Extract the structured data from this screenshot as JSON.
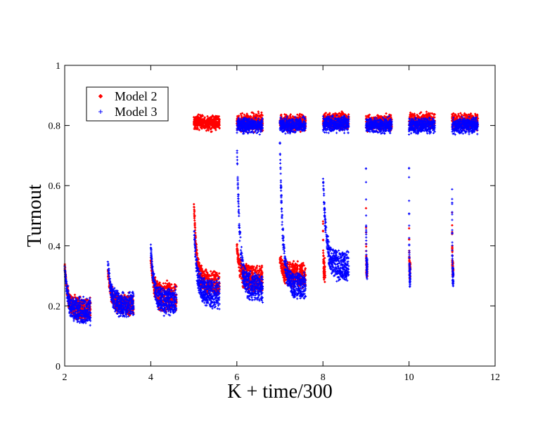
{
  "chart_data": {
    "type": "scatter",
    "title": "",
    "xlabel": "K + time/300",
    "ylabel": "Turnout",
    "xlim": [
      2,
      12
    ],
    "ylim": [
      0,
      1
    ],
    "xticks": [
      2,
      4,
      6,
      8,
      10,
      12
    ],
    "yticks": [
      0,
      0.2,
      0.4,
      0.6,
      0.8,
      1
    ],
    "xtick_labels": [
      "2",
      "4",
      "6",
      "8",
      "10",
      "12"
    ],
    "ytick_labels": [
      "0",
      "0.2",
      "0.4",
      "0.6",
      "0.8",
      "1"
    ],
    "grid": false,
    "legend_position": "top-left",
    "series": [
      {
        "name": "Model 2",
        "marker": "diamond",
        "color": "#ff0000",
        "clusters": [
          {
            "x": [
              2.0,
              2.6
            ],
            "y_start": 0.34,
            "y_low": 0.16,
            "y_high": 0.22,
            "mode": "decay"
          },
          {
            "x": [
              3.0,
              3.6
            ],
            "y_start": 0.33,
            "y_low": 0.18,
            "y_high": 0.23,
            "mode": "decay"
          },
          {
            "x": [
              4.0,
              4.6
            ],
            "y_start": 0.36,
            "y_low": 0.19,
            "y_high": 0.27,
            "mode": "decay"
          },
          {
            "x": [
              5.0,
              5.6
            ],
            "y_mid": 0.81,
            "spread": 0.035,
            "mode": "band"
          },
          {
            "x": [
              5.0,
              5.6
            ],
            "y_start": 0.55,
            "y_low": 0.24,
            "y_high": 0.31,
            "mode": "decay"
          },
          {
            "x": [
              6.0,
              6.6
            ],
            "y_mid": 0.81,
            "spread": 0.04,
            "mode": "band"
          },
          {
            "x": [
              6.0,
              6.6
            ],
            "y_start": 0.4,
            "y_low": 0.25,
            "y_high": 0.33,
            "mode": "decay"
          },
          {
            "x": [
              7.0,
              7.6
            ],
            "y_mid": 0.81,
            "spread": 0.035,
            "mode": "band"
          },
          {
            "x": [
              7.0,
              7.6
            ],
            "y_start": 0.36,
            "y_low": 0.27,
            "y_high": 0.34,
            "mode": "decay"
          },
          {
            "x": [
              8.0,
              8.6
            ],
            "y_mid": 0.815,
            "spread": 0.035,
            "mode": "band"
          },
          {
            "x": [
              8.0,
              8.05
            ],
            "y_start": 0.55,
            "y_low": 0.28,
            "y_high": 0.35,
            "mode": "decay"
          },
          {
            "x": [
              9.0,
              9.6
            ],
            "y_mid": 0.81,
            "spread": 0.035,
            "mode": "band"
          },
          {
            "x": [
              9.0,
              9.03
            ],
            "y_start": 0.55,
            "y_low": 0.3,
            "y_high": 0.34,
            "mode": "decay"
          },
          {
            "x": [
              10.0,
              10.6
            ],
            "y_mid": 0.815,
            "spread": 0.035,
            "mode": "band"
          },
          {
            "x": [
              10.0,
              10.03
            ],
            "y_start": 0.55,
            "y_low": 0.3,
            "y_high": 0.34,
            "mode": "decay"
          },
          {
            "x": [
              11.0,
              11.6
            ],
            "y_mid": 0.815,
            "spread": 0.035,
            "mode": "band"
          },
          {
            "x": [
              11.0,
              11.03
            ],
            "y_start": 0.55,
            "y_low": 0.3,
            "y_high": 0.34,
            "mode": "decay"
          }
        ]
      },
      {
        "name": "Model 3",
        "marker": "plus",
        "color": "#0000ff",
        "clusters": [
          {
            "x": [
              2.0,
              2.6
            ],
            "y_start": 0.33,
            "y_low": 0.15,
            "y_high": 0.22,
            "mode": "decay"
          },
          {
            "x": [
              3.0,
              3.6
            ],
            "y_start": 0.35,
            "y_low": 0.17,
            "y_high": 0.24,
            "mode": "decay"
          },
          {
            "x": [
              4.0,
              4.6
            ],
            "y_start": 0.4,
            "y_low": 0.18,
            "y_high": 0.25,
            "mode": "decay"
          },
          {
            "x": [
              5.0,
              5.6
            ],
            "y_start": 0.48,
            "y_low": 0.2,
            "y_high": 0.28,
            "mode": "decay"
          },
          {
            "x": [
              6.0,
              6.6
            ],
            "y_mid": 0.8,
            "spread": 0.035,
            "mode": "band"
          },
          {
            "x": [
              6.0,
              6.6
            ],
            "y_start": 0.75,
            "y_low": 0.22,
            "y_high": 0.3,
            "mode": "decay"
          },
          {
            "x": [
              7.0,
              7.6
            ],
            "y_mid": 0.8,
            "spread": 0.035,
            "mode": "band"
          },
          {
            "x": [
              7.0,
              7.6
            ],
            "y_start": 0.75,
            "y_low": 0.23,
            "y_high": 0.3,
            "mode": "decay"
          },
          {
            "x": [
              8.0,
              8.6
            ],
            "y_mid": 0.805,
            "spread": 0.035,
            "mode": "band"
          },
          {
            "x": [
              8.0,
              8.6
            ],
            "y_start": 0.65,
            "y_low": 0.29,
            "y_high": 0.38,
            "mode": "decay"
          },
          {
            "x": [
              9.0,
              9.6
            ],
            "y_mid": 0.8,
            "spread": 0.035,
            "mode": "band"
          },
          {
            "x": [
              9.0,
              9.03
            ],
            "y_start": 0.7,
            "y_low": 0.3,
            "y_high": 0.35,
            "mode": "decay"
          },
          {
            "x": [
              10.0,
              10.6
            ],
            "y_mid": 0.8,
            "spread": 0.035,
            "mode": "band"
          },
          {
            "x": [
              10.0,
              10.03
            ],
            "y_start": 0.7,
            "y_low": 0.27,
            "y_high": 0.33,
            "mode": "decay"
          },
          {
            "x": [
              11.0,
              11.6
            ],
            "y_mid": 0.8,
            "spread": 0.035,
            "mode": "band"
          },
          {
            "x": [
              11.0,
              11.03
            ],
            "y_start": 0.7,
            "y_low": 0.27,
            "y_high": 0.33,
            "mode": "decay"
          }
        ]
      }
    ]
  }
}
